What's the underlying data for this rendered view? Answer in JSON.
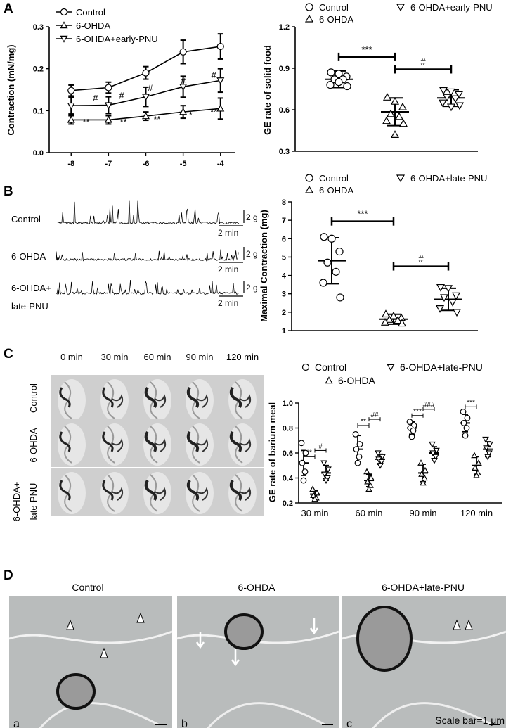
{
  "panels": {
    "A": "A",
    "B": "B",
    "C": "C",
    "D": "D"
  },
  "legend_A1": [
    "Control",
    "6-OHDA",
    "6-OHDA+early-PNU"
  ],
  "legend_A2": [
    "Control",
    "6-OHDA+early-PNU",
    "6-OHDA"
  ],
  "legend_B": [
    "Control",
    "6-OHDA+late-PNU",
    "6-OHDA"
  ],
  "legend_C": [
    "Control",
    "6-OHDA+late-PNU",
    "6-OHDA"
  ],
  "traces": {
    "labels": [
      "Control",
      "6-OHDA",
      "6-OHDA+",
      "late-PNU"
    ],
    "scale_g": "2 g",
    "scale_min": "2 min"
  },
  "xray": {
    "times": [
      "0 min",
      "30 min",
      "60 min",
      "90 min",
      "120 min"
    ],
    "rows": [
      "Control",
      "6-OHDA",
      "6-OHDA+",
      "late-PNU"
    ]
  },
  "em": {
    "titles": [
      "Control",
      "6-OHDA",
      "6-OHDA+late-PNU"
    ],
    "sub": [
      "a",
      "b",
      "c"
    ],
    "scale_bar": "Scale bar=1 μm"
  },
  "colors": {
    "ink": "#000000",
    "em_bg": "#b9bcbc",
    "xray_bg": "#c9c9c9"
  },
  "chart_data": [
    {
      "id": "A1",
      "type": "line",
      "ylabel": "Contraction (mN/mg)",
      "xlabel": "",
      "x": [
        -8,
        -7,
        -6,
        -5,
        -4
      ],
      "ylim": [
        0.0,
        0.3
      ],
      "yticks": [
        0.0,
        0.1,
        0.2,
        0.3
      ],
      "series": [
        {
          "name": "Control",
          "marker": "circle",
          "values": [
            0.148,
            0.155,
            0.19,
            0.24,
            0.253
          ],
          "err": [
            0.013,
            0.013,
            0.015,
            0.028,
            0.03
          ]
        },
        {
          "name": "6-OHDA",
          "marker": "triangle-up",
          "values": [
            0.078,
            0.078,
            0.087,
            0.097,
            0.105
          ],
          "err": [
            0.01,
            0.01,
            0.01,
            0.015,
            0.025
          ]
        },
        {
          "name": "6-OHDA+early-PNU",
          "marker": "triangle-down",
          "values": [
            0.112,
            0.113,
            0.133,
            0.157,
            0.172
          ],
          "err": [
            0.02,
            0.02,
            0.023,
            0.025,
            0.028
          ]
        }
      ],
      "annotations": [
        {
          "text": "#",
          "x": -7.35,
          "y": 0.122
        },
        {
          "text": "#",
          "x": -6.65,
          "y": 0.128
        },
        {
          "text": "#",
          "x": -5.88,
          "y": 0.147
        },
        {
          "text": "#",
          "x": -5.0,
          "y": 0.163
        },
        {
          "text": "#",
          "x": -4.18,
          "y": 0.178
        },
        {
          "text": "**",
          "x": -7.6,
          "y": 0.065
        },
        {
          "text": "**",
          "x": -6.6,
          "y": 0.065
        },
        {
          "text": "**",
          "x": -5.7,
          "y": 0.072
        },
        {
          "text": "*",
          "x": -4.8,
          "y": 0.082
        },
        {
          "text": "**",
          "x": -4.18,
          "y": 0.09
        }
      ]
    },
    {
      "id": "A2",
      "type": "scatter",
      "ylabel": "GE rate of solid food",
      "categories": [
        "Control",
        "6-OHDA",
        "6-OHDA+early-PNU"
      ],
      "ylim": [
        0.3,
        1.2
      ],
      "yticks": [
        0.3,
        0.6,
        0.9,
        1.2
      ],
      "means": [
        0.82,
        0.585,
        0.685
      ],
      "sd": [
        0.06,
        0.1,
        0.06
      ],
      "points": [
        [
          0.87,
          0.86,
          0.84,
          0.82,
          0.82,
          0.78,
          0.77,
          0.8
        ],
        [
          0.69,
          0.66,
          0.62,
          0.57,
          0.55,
          0.52,
          0.5,
          0.42
        ],
        [
          0.74,
          0.73,
          0.71,
          0.69,
          0.68,
          0.65,
          0.63,
          0.62
        ]
      ],
      "markers": [
        "circle",
        "triangle-up",
        "triangle-down"
      ],
      "sig": [
        {
          "from": 0,
          "to": 1,
          "label": "***"
        },
        {
          "from": 1,
          "to": 2,
          "label": "#"
        }
      ]
    },
    {
      "id": "B",
      "type": "scatter",
      "ylabel": "Maximal Contraction (mg)",
      "categories": [
        "Control",
        "6-OHDA",
        "6-OHDA+late-PNU"
      ],
      "ylim": [
        1,
        8
      ],
      "yticks": [
        1,
        2,
        3,
        4,
        5,
        6,
        7,
        8
      ],
      "means": [
        4.8,
        1.62,
        2.7
      ],
      "sd": [
        1.25,
        0.27,
        0.6
      ],
      "points": [
        [
          6.1,
          6.0,
          5.3,
          4.7,
          4.2,
          3.6,
          2.8
        ],
        [
          1.9,
          1.8,
          1.7,
          1.6,
          1.55,
          1.45,
          1.4
        ],
        [
          3.35,
          3.3,
          2.9,
          2.8,
          2.55,
          2.2,
          2.0
        ]
      ],
      "markers": [
        "circle",
        "triangle-up",
        "triangle-down"
      ],
      "sig": [
        {
          "from": 0,
          "to": 1,
          "label": "***"
        },
        {
          "from": 1,
          "to": 2,
          "label": "#"
        }
      ]
    },
    {
      "id": "C",
      "type": "scatter",
      "ylabel": "GE rate of barium meal",
      "categories": [
        "30 min",
        "60 min",
        "90 min",
        "120 min"
      ],
      "ylim": [
        0.2,
        1.0
      ],
      "yticks": [
        0.2,
        0.4,
        0.6,
        0.8,
        1.0
      ],
      "groups": [
        {
          "name": "Control",
          "marker": "circle",
          "means": [
            0.52,
            0.63,
            0.8,
            0.84
          ],
          "sd": [
            0.1,
            0.11,
            0.05,
            0.07
          ],
          "points": [
            [
              0.68,
              0.6,
              0.52,
              0.45,
              0.38
            ],
            [
              0.75,
              0.67,
              0.63,
              0.57,
              0.52
            ],
            [
              0.85,
              0.82,
              0.8,
              0.78,
              0.73
            ],
            [
              0.93,
              0.88,
              0.84,
              0.8,
              0.74
            ]
          ]
        },
        {
          "name": "6-OHDA",
          "marker": "triangle-up",
          "means": [
            0.27,
            0.38,
            0.44,
            0.5
          ],
          "sd": [
            0.03,
            0.05,
            0.07,
            0.07
          ],
          "points": [
            [
              0.31,
              0.28,
              0.26,
              0.24,
              0.23
            ],
            [
              0.45,
              0.4,
              0.37,
              0.34,
              0.31
            ],
            [
              0.52,
              0.46,
              0.43,
              0.4,
              0.36
            ],
            [
              0.58,
              0.52,
              0.48,
              0.44,
              0.42
            ]
          ]
        },
        {
          "name": "6-OHDA+late-PNU",
          "marker": "triangle-down",
          "means": [
            0.44,
            0.55,
            0.6,
            0.63
          ],
          "sd": [
            0.06,
            0.04,
            0.05,
            0.06
          ],
          "points": [
            [
              0.52,
              0.47,
              0.43,
              0.4,
              0.38
            ],
            [
              0.6,
              0.57,
              0.55,
              0.53,
              0.5
            ],
            [
              0.67,
              0.62,
              0.6,
              0.57,
              0.54
            ],
            [
              0.71,
              0.67,
              0.64,
              0.6,
              0.57
            ]
          ]
        }
      ],
      "sig": [
        {
          "cat": 0,
          "pair": [
            0,
            1
          ],
          "label": "**",
          "y": 0.57
        },
        {
          "cat": 0,
          "pair": [
            1,
            2
          ],
          "label": "#",
          "y": 0.62
        },
        {
          "cat": 1,
          "pair": [
            0,
            1
          ],
          "label": "**",
          "y": 0.82
        },
        {
          "cat": 1,
          "pair": [
            1,
            2
          ],
          "label": "##",
          "y": 0.87
        },
        {
          "cat": 2,
          "pair": [
            0,
            1
          ],
          "label": "***",
          "y": 0.9
        },
        {
          "cat": 2,
          "pair": [
            1,
            2
          ],
          "label": "###",
          "y": 0.95
        },
        {
          "cat": 3,
          "pair": [
            0,
            1
          ],
          "label": "***",
          "y": 0.97
        }
      ]
    }
  ]
}
